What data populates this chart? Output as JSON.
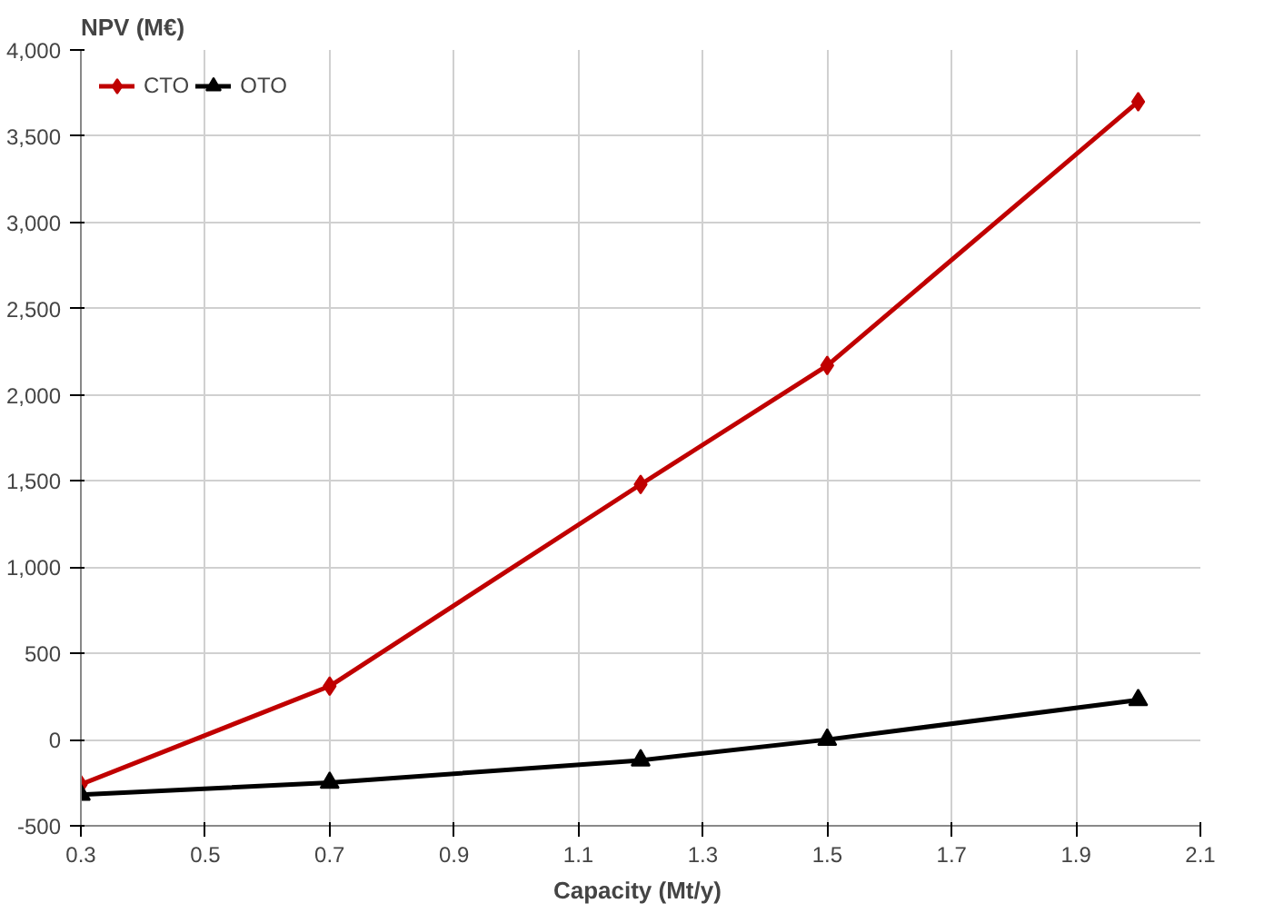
{
  "chart_data": {
    "type": "line",
    "ylabel": "NPV (M€)",
    "xlabel": "Capacity  (Mt/y)",
    "x": [
      0.3,
      0.7,
      1.2,
      1.5,
      2.0
    ],
    "series": [
      {
        "name": "CTO",
        "color": "#c00000",
        "marker": "diamond",
        "values": [
          -260,
          310,
          1480,
          2170,
          3700
        ]
      },
      {
        "name": "OTO",
        "color": "#000000",
        "marker": "triangle",
        "values": [
          -320,
          -250,
          -120,
          0,
          230
        ]
      }
    ],
    "xlim": [
      0.3,
      2.1
    ],
    "xticks": [
      0.3,
      0.5,
      0.7,
      0.9,
      1.1,
      1.3,
      1.5,
      1.7,
      1.9,
      2.1
    ],
    "ylim": [
      -500,
      4000
    ],
    "yticks": [
      {
        "value": -500,
        "label": "-500"
      },
      {
        "value": 0,
        "label": "0"
      },
      {
        "value": 500,
        "label": "500"
      },
      {
        "value": 1000,
        "label": "1,000"
      },
      {
        "value": 1500,
        "label": "1,500"
      },
      {
        "value": 2000,
        "label": "2,000"
      },
      {
        "value": 2500,
        "label": "2,500"
      },
      {
        "value": 3000,
        "label": "3,000"
      },
      {
        "value": 3500,
        "label": "3,500"
      },
      {
        "value": 4000,
        "label": "4,000"
      }
    ],
    "grid": true,
    "legend": "top left",
    "line_style": "solid"
  }
}
